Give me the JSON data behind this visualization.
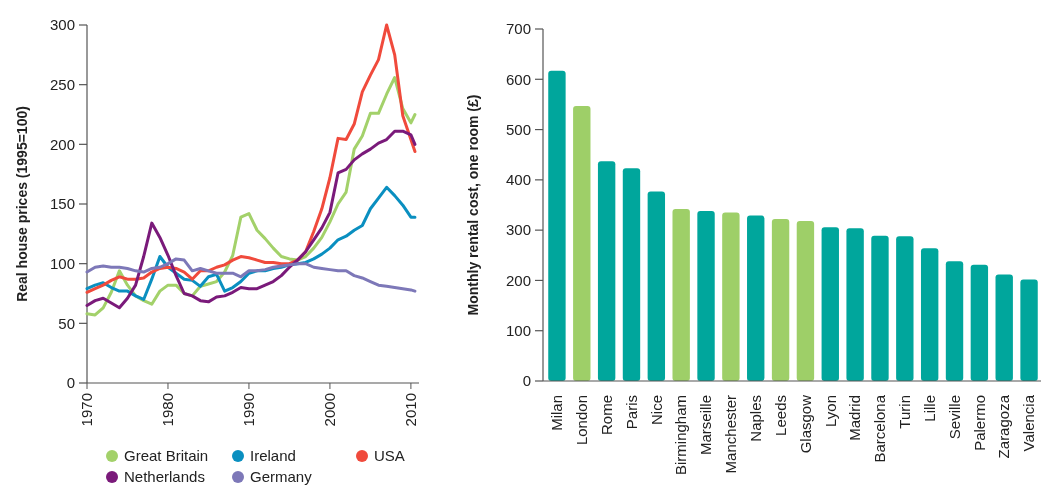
{
  "chart_data": [
    {
      "type": "line",
      "ylabel": "Real house prices (1995=100)",
      "xlim": [
        1970,
        2011
      ],
      "xticks": [
        1970,
        1980,
        1990,
        2000,
        2010
      ],
      "ylim": [
        0,
        300
      ],
      "yticks": [
        0,
        50,
        100,
        150,
        200,
        250,
        300
      ],
      "legend": "bottom",
      "grid": false,
      "marker": "none",
      "line_style": "solid",
      "x": [
        1970,
        1971,
        1972,
        1973,
        1974,
        1975,
        1976,
        1977,
        1978,
        1979,
        1980,
        1981,
        1982,
        1983,
        1984,
        1985,
        1986,
        1987,
        1988,
        1989,
        1990,
        1991,
        1992,
        1993,
        1994,
        1995,
        1996,
        1997,
        1998,
        1999,
        2000,
        2001,
        2002,
        2003,
        2004,
        2005,
        2006,
        2007,
        2008,
        2009,
        2010,
        2010.5
      ],
      "series": [
        {
          "name": "Great Britain",
          "color": "#a3d16a",
          "values": [
            58,
            57,
            63,
            76,
            94,
            82,
            73,
            69,
            66,
            77,
            82,
            82,
            75,
            73,
            81,
            83,
            85,
            93,
            107,
            139,
            142,
            128,
            121,
            113,
            106,
            104,
            103,
            106,
            113,
            122,
            135,
            150,
            160,
            196,
            207,
            226,
            226,
            242,
            256,
            230,
            218,
            225
          ]
        },
        {
          "name": "Ireland",
          "color": "#0a8fc0",
          "values": [
            79,
            82,
            84,
            80,
            77,
            77,
            73,
            70,
            87,
            106,
            97,
            92,
            87,
            86,
            81,
            89,
            91,
            77,
            80,
            85,
            92,
            94,
            94,
            96,
            97,
            99,
            100,
            101,
            104,
            108,
            113,
            120,
            123,
            128,
            132,
            146,
            155,
            164,
            157,
            149,
            139,
            139
          ]
        },
        {
          "name": "USA",
          "color": "#f04a3c",
          "values": [
            76,
            79,
            82,
            86,
            89,
            87,
            87,
            88,
            93,
            96,
            97,
            96,
            93,
            87,
            94,
            94,
            97,
            99,
            103,
            106,
            105,
            103,
            101,
            101,
            100,
            100,
            103,
            110,
            127,
            146,
            172,
            205,
            204,
            217,
            244,
            258,
            271,
            300,
            275,
            224,
            204,
            194
          ]
        },
        {
          "name": "Netherlands",
          "color": "#7a1a7a",
          "values": [
            65,
            69,
            71,
            67,
            63,
            71,
            82,
            106,
            134,
            122,
            107,
            90,
            75,
            73,
            69,
            68,
            72,
            73,
            76,
            80,
            79,
            79,
            82,
            85,
            90,
            97,
            103,
            110,
            120,
            130,
            143,
            176,
            179,
            187,
            192,
            196,
            201,
            204,
            211,
            211,
            208,
            200
          ]
        },
        {
          "name": "Germany",
          "color": "#7d78b8",
          "values": [
            93,
            97,
            98,
            97,
            97,
            96,
            94,
            93,
            96,
            97,
            100,
            104,
            103,
            94,
            96,
            94,
            92,
            92,
            92,
            89,
            94,
            94,
            95,
            97,
            98,
            99,
            100,
            100,
            97,
            96,
            95,
            94,
            94,
            90,
            88,
            85,
            82,
            81,
            80,
            79,
            78,
            77
          ]
        }
      ]
    },
    {
      "type": "bar",
      "ylabel": "Monthly rental cost, one room (£)",
      "ylim": [
        0,
        700
      ],
      "yticks": [
        0,
        100,
        200,
        300,
        400,
        500,
        600,
        700
      ],
      "grid": false,
      "categories": [
        "Milan",
        "London",
        "Rome",
        "Paris",
        "Nice",
        "Birmingham",
        "Marseille",
        "Manchester",
        "Naples",
        "Leeds",
        "Glasgow",
        "Lyon",
        "Madrid",
        "Barcelona",
        "Turin",
        "Lille",
        "Seville",
        "Palermo",
        "Zaragoza",
        "Valencia"
      ],
      "values": [
        617,
        547,
        437,
        423,
        377,
        342,
        338,
        335,
        329,
        322,
        318,
        306,
        304,
        289,
        288,
        264,
        238,
        231,
        212,
        202
      ],
      "colors": [
        "#00a69c",
        "#9ecf68",
        "#00a69c",
        "#00a69c",
        "#00a69c",
        "#9ecf68",
        "#00a69c",
        "#9ecf68",
        "#00a69c",
        "#9ecf68",
        "#9ecf68",
        "#00a69c",
        "#00a69c",
        "#00a69c",
        "#00a69c",
        "#00a69c",
        "#00a69c",
        "#00a69c",
        "#00a69c",
        "#00a69c"
      ]
    }
  ]
}
